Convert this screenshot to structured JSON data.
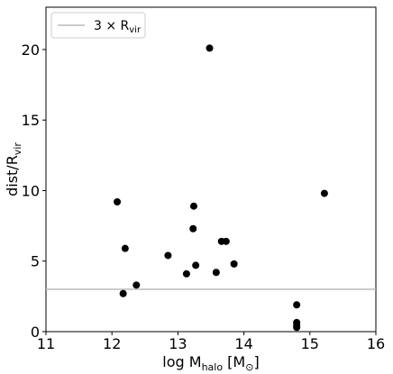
{
  "chart_data": {
    "type": "scatter",
    "title": "",
    "xlabel": {
      "main": "log M",
      "sub": "halo",
      "unit_open": " [M",
      "unit_sub": "⊙",
      "unit_close": "]"
    },
    "ylabel": {
      "main": "dist/R",
      "sub": "vir"
    },
    "xlim": [
      11,
      16
    ],
    "ylim": [
      0,
      23
    ],
    "xticks": [
      11,
      12,
      13,
      14,
      15,
      16
    ],
    "yticks": [
      0,
      5,
      10,
      15,
      20
    ],
    "grid": false,
    "legend": {
      "placement": "top-left",
      "entries": [
        {
          "label_main": "3 × R",
          "label_sub": "vir",
          "kind": "line",
          "color": "#bbbbbb"
        }
      ]
    },
    "reference_lines": [
      {
        "orientation": "horizontal",
        "y": 3,
        "color": "#bbbbbb"
      }
    ],
    "marker_color": "#000000",
    "points": [
      {
        "x": 12.08,
        "y": 9.2
      },
      {
        "x": 12.2,
        "y": 5.9
      },
      {
        "x": 12.17,
        "y": 2.7
      },
      {
        "x": 12.37,
        "y": 3.3
      },
      {
        "x": 12.85,
        "y": 5.4
      },
      {
        "x": 13.13,
        "y": 4.1
      },
      {
        "x": 13.23,
        "y": 7.3
      },
      {
        "x": 13.24,
        "y": 8.9
      },
      {
        "x": 13.27,
        "y": 4.7
      },
      {
        "x": 13.48,
        "y": 20.1
      },
      {
        "x": 13.58,
        "y": 4.2
      },
      {
        "x": 13.66,
        "y": 6.4
      },
      {
        "x": 13.73,
        "y": 6.4
      },
      {
        "x": 13.85,
        "y": 4.8
      },
      {
        "x": 14.8,
        "y": 1.9
      },
      {
        "x": 14.8,
        "y": 0.65
      },
      {
        "x": 14.8,
        "y": 0.45
      },
      {
        "x": 14.8,
        "y": 0.3
      },
      {
        "x": 15.22,
        "y": 9.8
      }
    ]
  }
}
